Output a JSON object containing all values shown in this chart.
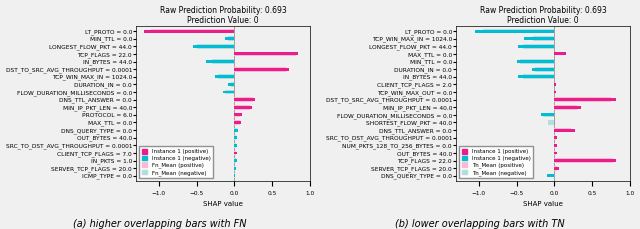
{
  "title": "Raw Prediction Probability: 0.693\nPrediction Value: 0",
  "xlabel": "SHAP value",
  "fig_width": 6.4,
  "fig_height": 2.29,
  "subplot_a": {
    "subtitle": "(a) higher overlapping bars with FN",
    "ytick_labels": [
      "LT_PROTO = 0.0",
      "MIN_TTL = 0.0",
      "LONGEST_FLOW_PKT = 44.0",
      "TCP_FLAGS = 22.0",
      "IN_BYTES = 44.0",
      "DST_TO_SRC_AVG_THROUGHPUT = 0.0001",
      "TCP_WIN_MAX_IN = 1024.0",
      "DURATION_IN = 0.0",
      "FLOW_DURATION_MILLISECONDS = 0.0",
      "DNS_TTL_ANSWER = 0.0",
      "MIN_IP_PKT_LEN = 40.0",
      "PROTOCOL = 6.0",
      "MAX_TTL = 0.0",
      "DNS_QUERY_TYPE = 0.0",
      "OUT_BYTES = 40.0",
      "SRC_TO_DST_AVG_THROUGHPUT = 0.0001",
      "CLIENT_TCP_FLAGS = 7.0",
      "IN_PKTS = 1.0",
      "SERVER_TCP_FLAGS = 20.0",
      "ICMP_TYPE = 0.0"
    ],
    "instance1_pos": [
      -1.2,
      0.0,
      0.0,
      0.85,
      0.0,
      0.72,
      0.0,
      0.0,
      0.0,
      0.28,
      0.24,
      0.1,
      0.09,
      0.0,
      0.0,
      0.0,
      0.04,
      0.0,
      0.0,
      0.0
    ],
    "instance1_neg": [
      0.0,
      -0.12,
      -0.55,
      0.0,
      -0.38,
      0.0,
      -0.25,
      -0.08,
      -0.15,
      0.0,
      0.0,
      0.0,
      0.0,
      0.05,
      0.04,
      0.03,
      0.0,
      0.03,
      0.02,
      0.01
    ],
    "fn_mean_pos": [
      -1.1,
      0.0,
      0.0,
      0.82,
      0.0,
      0.68,
      0.0,
      0.0,
      0.0,
      0.25,
      0.21,
      0.08,
      0.07,
      0.0,
      0.0,
      0.0,
      0.02,
      0.0,
      0.0,
      0.0
    ],
    "fn_mean_neg": [
      0.0,
      -0.08,
      -0.5,
      0.0,
      -0.3,
      0.0,
      -0.22,
      -0.05,
      -0.12,
      0.0,
      0.0,
      0.0,
      0.0,
      0.04,
      0.02,
      0.02,
      0.0,
      0.02,
      0.01,
      0.005
    ],
    "xlim": [
      -1.3,
      1.0
    ],
    "legend_labels": [
      "Instance 1 (positive)",
      "Instance 1 (negative)",
      "Fn_Mean (positive)",
      "Fn_Mean (negative)"
    ],
    "colors": [
      "#e91e8c",
      "#00bcd4",
      "#f8bbd0",
      "#b2dfdb"
    ]
  },
  "subplot_b": {
    "subtitle": "(b) lower overlapping bars with TN",
    "ytick_labels": [
      "LT_PROTO = 0.0",
      "TCP_WIN_MAX_IN = 1024.0",
      "LONGEST_FLOW_PKT = 44.0",
      "MAX_TTL = 0.0",
      "MIN_TTL = 0.0",
      "DURATION_IN = 0.0",
      "IN_BYTES = 44.0",
      "CLIENT_TCP_FLAGS = 2.0",
      "TCP_WIN_MAX_OUT = 0.0",
      "DST_TO_SRC_AVG_THROUGHPUT = 0.0001",
      "MIN_IP_PKT_LEN = 40.0",
      "FLOW_DURATION_MILLISECONDS = 0.0",
      "SHORTEST_FLOW_PKT = 40.0",
      "DNS_TTL_ANSWER = 0.0",
      "SRC_TO_DST_AVG_THROUGHPUT = 0.0001",
      "NUM_PKTS_128_TO_256_BYTES = 0.0",
      "OUT_BYTES = 40.0",
      "TCP_FLAGS = 22.0",
      "SERVER_TCP_FLAGS = 20.0",
      "DNS_QUERY_TYPE = 0.0"
    ],
    "instance1_pos": [
      0.0,
      0.0,
      0.0,
      0.16,
      0.0,
      0.0,
      0.0,
      0.02,
      0.02,
      0.82,
      0.35,
      0.0,
      0.0,
      0.28,
      0.04,
      0.03,
      0.04,
      0.82,
      0.06,
      0.0
    ],
    "instance1_neg": [
      -1.05,
      -0.4,
      -0.48,
      0.0,
      -0.5,
      -0.3,
      -0.48,
      0.0,
      0.0,
      0.0,
      0.0,
      -0.18,
      0.0,
      0.0,
      0.0,
      0.0,
      0.0,
      0.0,
      0.0,
      -0.1
    ],
    "tn_mean_pos": [
      0.0,
      0.0,
      0.0,
      0.0,
      0.0,
      0.0,
      0.0,
      0.0,
      0.0,
      0.75,
      0.3,
      0.0,
      0.0,
      0.22,
      0.02,
      0.01,
      0.02,
      0.78,
      0.04,
      0.0
    ],
    "tn_mean_neg": [
      -0.95,
      -0.28,
      -0.42,
      0.0,
      -0.45,
      -0.25,
      -0.42,
      0.0,
      0.0,
      0.0,
      0.0,
      -0.15,
      -0.08,
      0.0,
      0.0,
      0.0,
      0.0,
      0.0,
      0.0,
      0.0
    ],
    "xlim": [
      -1.3,
      1.0
    ],
    "legend_labels": [
      "Instance 1 (positive)",
      "Instance 1 (negative)",
      "Tn_Mean (positive)",
      "Tn_Mean (negative)"
    ],
    "colors": [
      "#e91e8c",
      "#00bcd4",
      "#f8bbd0",
      "#b2dfdb"
    ]
  },
  "background_color": "#f0f0f0",
  "title_fontsize": 5.5,
  "label_fontsize": 5,
  "tick_fontsize": 4.2,
  "caption_fontsize": 7,
  "legend_fontsize": 4.0
}
